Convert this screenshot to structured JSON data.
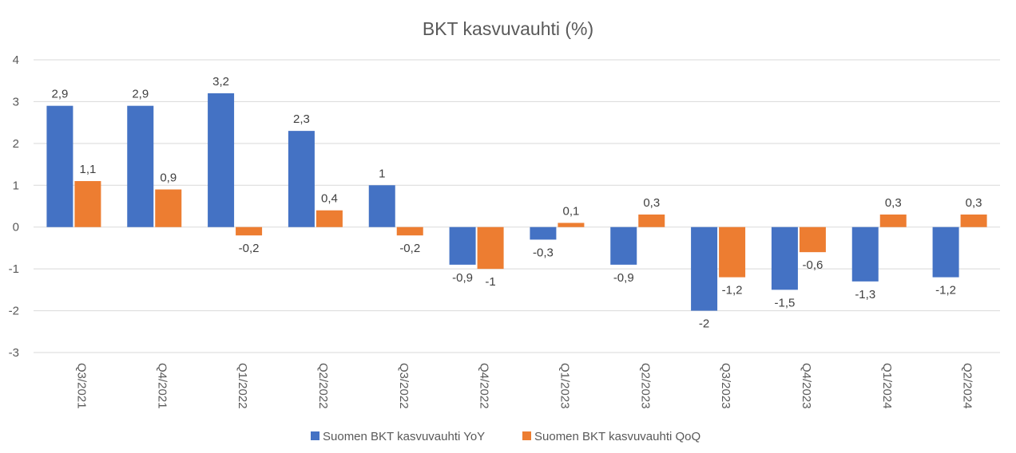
{
  "chart_data": {
    "type": "bar",
    "title": "BKT kasvuvauhti (%)",
    "xlabel": "",
    "ylabel": "",
    "ylim": [
      -3,
      4
    ],
    "yticks": [
      4,
      3,
      2,
      1,
      0,
      -1,
      -2,
      -3
    ],
    "grid": true,
    "legend_position": "bottom",
    "categories": [
      "Q3/2021",
      "Q4/2021",
      "Q1/2022",
      "Q2/2022",
      "Q3/2022",
      "Q4/2022",
      "Q1/2023",
      "Q2/2023",
      "Q3/2023",
      "Q4/2023",
      "Q1/2024",
      "Q2/2024"
    ],
    "series": [
      {
        "name": "Suomen BKT kasvuvauhti YoY",
        "color": "#4472c4",
        "values": [
          2.9,
          2.9,
          3.2,
          2.3,
          1,
          -0.9,
          -0.3,
          -0.9,
          -2,
          -1.5,
          -1.3,
          -1.2
        ],
        "labels": [
          "2,9",
          "2,9",
          "3,2",
          "2,3",
          "1",
          "-0,9",
          "-0,3",
          "-0,9",
          "-2",
          "-1,5",
          "-1,3",
          "-1,2"
        ]
      },
      {
        "name": "Suomen BKT kasvuvauhti QoQ",
        "color": "#ed7d31",
        "values": [
          1.1,
          0.9,
          -0.2,
          0.4,
          -0.2,
          -1,
          0.1,
          0.3,
          -1.2,
          -0.6,
          0.3,
          0.3
        ],
        "labels": [
          "1,1",
          "0,9",
          "-0,2",
          "0,4",
          "-0,2",
          "-1",
          "0,1",
          "0,3",
          "-1,2",
          "-0,6",
          "0,3",
          "0,3"
        ]
      }
    ]
  }
}
